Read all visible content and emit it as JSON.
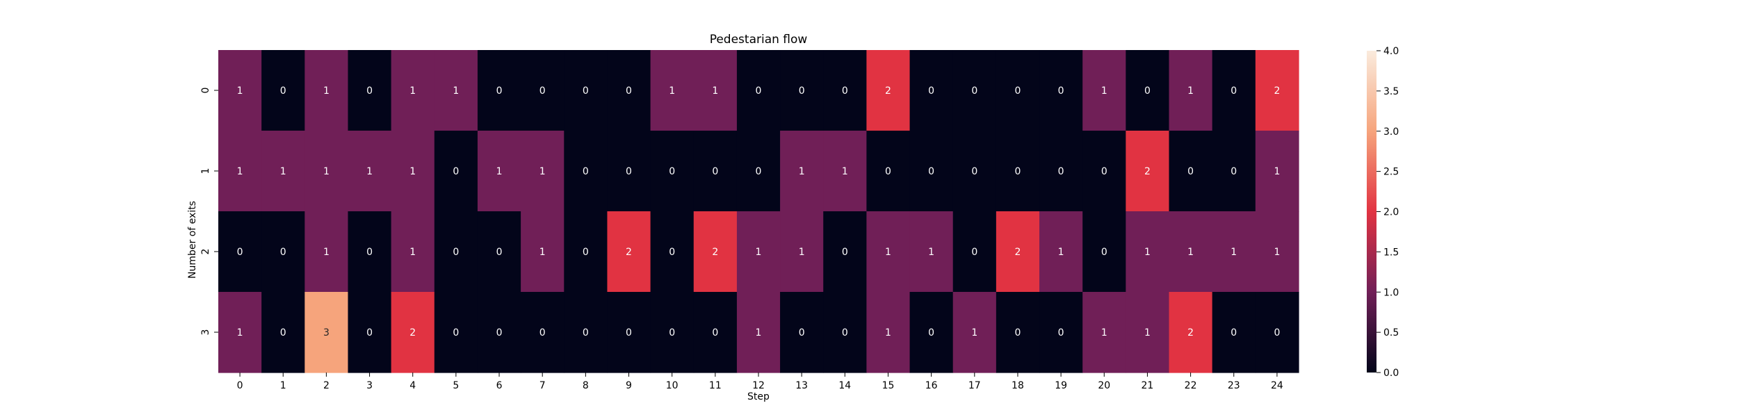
{
  "chart_data": {
    "type": "heatmap",
    "title": "Pedestarian flow",
    "xlabel": "Step",
    "ylabel": "Number of exits",
    "x_categories": [
      "0",
      "1",
      "2",
      "3",
      "4",
      "5",
      "6",
      "7",
      "8",
      "9",
      "10",
      "11",
      "12",
      "13",
      "14",
      "15",
      "16",
      "17",
      "18",
      "19",
      "20",
      "21",
      "22",
      "23",
      "24"
    ],
    "y_categories": [
      "0",
      "1",
      "2",
      "3"
    ],
    "values": [
      [
        1,
        0,
        1,
        0,
        1,
        1,
        0,
        0,
        0,
        0,
        1,
        1,
        0,
        0,
        0,
        2,
        0,
        0,
        0,
        0,
        1,
        0,
        1,
        0,
        2
      ],
      [
        1,
        1,
        1,
        1,
        1,
        0,
        1,
        1,
        0,
        0,
        0,
        0,
        0,
        1,
        1,
        0,
        0,
        0,
        0,
        0,
        0,
        2,
        0,
        0,
        1
      ],
      [
        0,
        0,
        1,
        0,
        1,
        0,
        0,
        1,
        0,
        2,
        0,
        2,
        1,
        1,
        0,
        1,
        1,
        0,
        2,
        1,
        0,
        1,
        1,
        1,
        1
      ],
      [
        1,
        0,
        3,
        0,
        2,
        0,
        0,
        0,
        0,
        0,
        0,
        0,
        1,
        0,
        0,
        1,
        0,
        1,
        0,
        0,
        1,
        1,
        2,
        0,
        0
      ]
    ],
    "annotations": true,
    "colorbar": {
      "vmin": 0,
      "vmax": 4,
      "ticks": [
        "0.0",
        "0.5",
        "1.0",
        "1.5",
        "2.0",
        "2.5",
        "3.0",
        "3.5",
        "4.0"
      ],
      "colormap": "rocket",
      "colors": {
        "0": "#03051a",
        "1": "#701f57",
        "2": "#e13342",
        "3": "#f6a47c",
        "4": "#faebdd"
      }
    },
    "annotation_colors": {
      "on_dark": "#ffffff",
      "on_light": "#262626"
    },
    "grid": false,
    "legend": "none"
  }
}
